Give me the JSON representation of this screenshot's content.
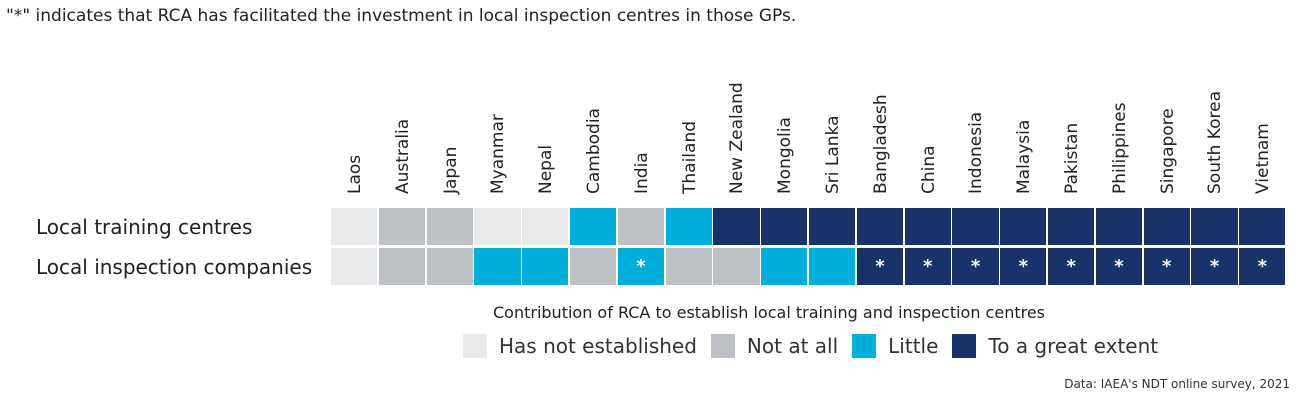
{
  "note": "\"*\" indicates that RCA has facilitated the investment in local inspection centres in those GPs.",
  "source": "Data: IAEA's NDT online survey, 2021",
  "chart_data": {
    "type": "heatmap",
    "title": "Contribution of RCA to establish local training and inspection centres",
    "columns": [
      "Laos",
      "Australia",
      "Japan",
      "Myanmar",
      "Nepal",
      "Cambodia",
      "India",
      "Thailand",
      "New Zealand",
      "Mongolia",
      "Sri Lanka",
      "Bangladesh",
      "China",
      "Indonesia",
      "Malaysia",
      "Pakistan",
      "Philippines",
      "Singapore",
      "South Korea",
      "Vietnam"
    ],
    "rows": [
      {
        "name": "Local training centres",
        "values": [
          "Has not established",
          "Not at all",
          "Not at all",
          "Has not established",
          "Has not established",
          "Little",
          "Not at all",
          "Little",
          "To a great extent",
          "To a great extent",
          "To a great extent",
          "To a great extent",
          "To a great extent",
          "To a great extent",
          "To a great extent",
          "To a great extent",
          "To a great extent",
          "To a great extent",
          "To a great extent",
          "To a great extent"
        ],
        "marks": [
          "",
          "",
          "",
          "",
          "",
          "",
          "",
          "",
          "",
          "",
          "",
          "",
          "",
          "",
          "",
          "",
          "",
          "",
          "",
          ""
        ]
      },
      {
        "name": "Local inspection companies",
        "values": [
          "Has not established",
          "Not at all",
          "Not at all",
          "Little",
          "Little",
          "Not at all",
          "Little",
          "Not at all",
          "Not at all",
          "Little",
          "Little",
          "To a great extent",
          "To a great extent",
          "To a great extent",
          "To a great extent",
          "To a great extent",
          "To a great extent",
          "To a great extent",
          "To a great extent",
          "To a great extent"
        ],
        "marks": [
          "",
          "",
          "",
          "",
          "",
          "",
          "*",
          "",
          "",
          "",
          "",
          "*",
          "*",
          "*",
          "*",
          "*",
          "*",
          "*",
          "*",
          "*"
        ]
      }
    ],
    "legend": [
      {
        "label": "Has not established",
        "color": "#e8e9eb"
      },
      {
        "label": "Not at all",
        "color": "#bcc0c4"
      },
      {
        "label": "Little",
        "color": "#00aedb"
      },
      {
        "label": "To a great extent",
        "color": "#17336a"
      }
    ],
    "legend_position": "bottom"
  }
}
